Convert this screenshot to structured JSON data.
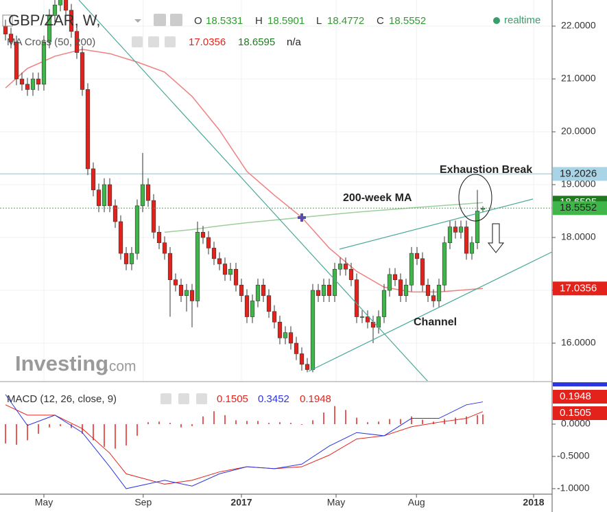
{
  "chart_data": {
    "type": "candlestick",
    "title": "GBP/ZAR, W,",
    "ohlc_labels": [
      "O",
      "H",
      "L",
      "C"
    ],
    "status": "realtime",
    "indicator": "MA Cross (50, 200)",
    "indicator_extra": "n/a",
    "up_color": "#3fb54a",
    "down_color": "#e3231b",
    "xlim": [
      -1,
      99.625
    ],
    "ylim": [
      15.286,
      22.494
    ],
    "xticks": [
      {
        "value": 7,
        "label": "May"
      },
      {
        "value": 25.1,
        "label": "Sep"
      },
      {
        "value": 43,
        "label": "2017"
      },
      {
        "value": 60.25,
        "label": "May"
      },
      {
        "value": 74.9,
        "label": "Aug"
      },
      {
        "value": 96.25,
        "label": "2018"
      }
    ],
    "yticks": [
      {
        "value": 16,
        "label": "16.0000"
      },
      {
        "value": 17,
        "label": "17.0000"
      },
      {
        "value": 18,
        "label": "18.0000"
      },
      {
        "value": 19,
        "label": "19.0000"
      },
      {
        "value": 20,
        "label": "20.0000"
      },
      {
        "value": 21,
        "label": "21.0000"
      },
      {
        "value": 22,
        "label": "22.0000"
      }
    ],
    "candles": [
      [
        22.0,
        22.12,
        21.73,
        21.85
      ],
      [
        21.85,
        21.97,
        21.58,
        21.7
      ],
      [
        21.7,
        21.82,
        20.88,
        21.0
      ],
      [
        21.0,
        21.12,
        20.78,
        20.9
      ],
      [
        20.9,
        21.02,
        20.68,
        20.8
      ],
      [
        20.8,
        21.12,
        20.68,
        21.0
      ],
      [
        21.0,
        21.12,
        20.78,
        20.9
      ],
      [
        20.9,
        21.82,
        20.78,
        21.7
      ],
      [
        21.7,
        22.32,
        21.58,
        22.2
      ],
      [
        22.2,
        22.52,
        22.08,
        22.4
      ],
      [
        22.4,
        22.62,
        22.28,
        22.5
      ],
      [
        22.5,
        22.62,
        22.18,
        22.3
      ],
      [
        22.3,
        22.42,
        21.78,
        21.9
      ],
      [
        21.9,
        22.02,
        21.38,
        21.5
      ],
      [
        21.5,
        21.62,
        20.68,
        20.8
      ],
      [
        20.8,
        20.92,
        19.18,
        19.3
      ],
      [
        19.3,
        19.42,
        18.78,
        18.9
      ],
      [
        18.9,
        19.02,
        18.48,
        18.6
      ],
      [
        18.6,
        19.12,
        18.48,
        19.0
      ],
      [
        19.0,
        19.12,
        18.48,
        18.6
      ],
      [
        18.6,
        18.72,
        18.18,
        18.3
      ],
      [
        18.3,
        18.42,
        17.58,
        17.7
      ],
      [
        17.7,
        17.82,
        17.38,
        17.5
      ],
      [
        17.5,
        17.82,
        17.38,
        17.7
      ],
      [
        17.7,
        18.72,
        17.58,
        18.6
      ],
      [
        18.6,
        19.6,
        18.48,
        19.0
      ],
      [
        19.0,
        19.12,
        18.58,
        18.7
      ],
      [
        18.7,
        18.82,
        17.98,
        18.1
      ],
      [
        18.1,
        18.22,
        17.78,
        17.9
      ],
      [
        17.9,
        18.02,
        17.58,
        17.7
      ],
      [
        17.7,
        17.82,
        16.5,
        17.2
      ],
      [
        17.2,
        17.32,
        16.98,
        17.1
      ],
      [
        17.1,
        17.22,
        16.78,
        16.9
      ],
      [
        16.9,
        17.12,
        16.6,
        17.0
      ],
      [
        17.0,
        17.12,
        16.3,
        16.8
      ],
      [
        16.8,
        18.3,
        16.68,
        18.1
      ],
      [
        18.1,
        18.22,
        17.88,
        18.0
      ],
      [
        18.0,
        18.12,
        17.68,
        17.8
      ],
      [
        17.8,
        17.92,
        17.48,
        17.6
      ],
      [
        17.6,
        17.72,
        17.38,
        17.5
      ],
      [
        17.5,
        17.62,
        17.18,
        17.3
      ],
      [
        17.3,
        17.52,
        17.18,
        17.4
      ],
      [
        17.4,
        17.52,
        16.98,
        17.1
      ],
      [
        17.1,
        17.22,
        16.78,
        16.9
      ],
      [
        16.9,
        17.02,
        16.38,
        16.5
      ],
      [
        16.5,
        16.92,
        16.38,
        16.8
      ],
      [
        16.8,
        17.22,
        16.68,
        17.1
      ],
      [
        17.1,
        17.22,
        16.78,
        16.9
      ],
      [
        16.9,
        17.02,
        16.48,
        16.6
      ],
      [
        16.6,
        16.72,
        16.28,
        16.4
      ],
      [
        16.4,
        16.52,
        15.98,
        16.1
      ],
      [
        16.1,
        16.32,
        15.98,
        16.2
      ],
      [
        16.2,
        16.32,
        15.88,
        16.0
      ],
      [
        16.0,
        16.12,
        15.68,
        15.8
      ],
      [
        15.8,
        15.92,
        15.48,
        15.6
      ],
      [
        15.6,
        15.72,
        15.45,
        15.5
      ],
      [
        15.5,
        17.12,
        15.45,
        17.0
      ],
      [
        17.0,
        17.12,
        16.78,
        16.9
      ],
      [
        16.9,
        17.22,
        16.78,
        17.1
      ],
      [
        17.1,
        17.22,
        16.78,
        16.9
      ],
      [
        16.9,
        17.52,
        16.78,
        17.4
      ],
      [
        17.4,
        17.62,
        17.28,
        17.5
      ],
      [
        17.5,
        17.62,
        17.28,
        17.4
      ],
      [
        17.4,
        17.52,
        17.08,
        17.2
      ],
      [
        17.2,
        17.32,
        16.38,
        16.5
      ],
      [
        16.5,
        16.62,
        16.38,
        16.5
      ],
      [
        16.5,
        16.62,
        16.28,
        16.4
      ],
      [
        16.4,
        16.52,
        16.0,
        16.3
      ],
      [
        16.3,
        16.62,
        16.18,
        16.5
      ],
      [
        16.5,
        17.12,
        16.38,
        17.0
      ],
      [
        17.0,
        17.42,
        16.88,
        17.3
      ],
      [
        17.3,
        17.42,
        17.08,
        17.2
      ],
      [
        17.2,
        17.32,
        16.78,
        16.9
      ],
      [
        16.9,
        17.22,
        16.78,
        17.1
      ],
      [
        17.1,
        17.82,
        16.98,
        17.7
      ],
      [
        17.7,
        17.82,
        17.48,
        17.6
      ],
      [
        17.6,
        17.72,
        16.98,
        17.1
      ],
      [
        17.1,
        17.22,
        16.78,
        16.9
      ],
      [
        16.9,
        17.02,
        16.68,
        16.8
      ],
      [
        16.8,
        17.22,
        16.68,
        17.1
      ],
      [
        17.1,
        18.02,
        16.98,
        17.9
      ],
      [
        17.9,
        18.32,
        17.78,
        18.2
      ],
      [
        18.2,
        18.32,
        17.98,
        18.1
      ],
      [
        18.1,
        18.32,
        17.98,
        18.2
      ],
      [
        18.2,
        18.32,
        17.58,
        17.7
      ],
      [
        17.7,
        18.02,
        17.58,
        17.9
      ],
      [
        17.9,
        18.9,
        17.78,
        18.5
      ],
      [
        18.5331,
        18.5901,
        18.4772,
        18.5552
      ]
    ],
    "series": [
      {
        "color": "#f08080",
        "x": [
          0,
          4,
          9,
          14,
          19,
          24,
          29,
          34,
          39,
          44,
          49,
          54,
          59,
          64,
          69,
          74,
          79,
          87
        ],
        "values": [
          20.83,
          21.2,
          21.43,
          21.56,
          21.48,
          21.32,
          21.13,
          20.67,
          20.03,
          19.25,
          18.8,
          18.38,
          17.8,
          17.36,
          17.06,
          16.97,
          16.97,
          17.0356
        ],
        "label_bg": "#e3231b"
      },
      {
        "color": "#9ccf9c",
        "x": [
          0,
          4,
          9,
          14,
          19,
          24,
          29,
          34,
          39,
          44,
          49,
          54,
          59,
          64,
          69,
          74,
          79,
          87
        ],
        "values": [
          null,
          null,
          null,
          null,
          null,
          null,
          18.1,
          18.15,
          18.22,
          18.28,
          18.33,
          18.38,
          18.43,
          18.48,
          18.52,
          18.56,
          18.6,
          18.6595
        ],
        "label_bg": "#1f7a1f"
      }
    ],
    "hline": {
      "value": 19.2026,
      "color": "#a8d4e6"
    },
    "annotations": [
      "Exhaustion Break",
      "200-week MA",
      "Channel"
    ],
    "watermark": [
      "Investing",
      ".com"
    ],
    "macd": {
      "title": "MACD (12, 26, close, 9)",
      "ylim": [
        -1.085,
        0.649
      ],
      "yticks": [
        {
          "value": -1,
          "label": "-1.0000"
        },
        {
          "value": -0.5,
          "label": "-0.5000"
        },
        {
          "value": 0,
          "label": "0.0000"
        }
      ],
      "histogram": {
        "color": "#e3231b",
        "x": [
          0,
          2,
          4,
          6,
          8,
          10,
          12,
          14,
          16,
          18,
          20,
          22,
          24,
          26,
          28,
          30,
          32,
          34,
          36,
          38,
          40,
          42,
          44,
          46,
          48,
          50,
          52,
          54,
          56,
          58,
          60,
          62,
          64,
          66,
          68,
          70,
          72,
          74,
          76,
          78,
          80,
          82,
          84,
          86,
          87
        ],
        "values": [
          -0.3,
          -0.32,
          -0.25,
          -0.15,
          -0.05,
          -0.03,
          -0.06,
          -0.15,
          -0.25,
          -0.35,
          -0.38,
          -0.33,
          -0.18,
          0.03,
          0.04,
          0.02,
          -0.05,
          -0.03,
          0.12,
          0.2,
          0.14,
          0.06,
          0.05,
          0.05,
          0.02,
          0.03,
          0.02,
          -0.01,
          0.06,
          0.18,
          0.28,
          0.22,
          0.1,
          0.03,
          0.04,
          0.08,
          0.08,
          0.12,
          0.07,
          0.04,
          0.08,
          0.1,
          0.12,
          0.14,
          0.1505
        ]
      },
      "macd": {
        "color": "#2b35e0",
        "x": [
          0,
          4,
          9,
          14,
          19,
          22,
          29,
          34,
          39,
          44,
          49,
          54,
          59,
          64,
          69,
          74,
          79,
          84,
          87
        ],
        "values": [
          0.46,
          -0.02,
          0.14,
          -0.13,
          -0.66,
          -1.0,
          -0.87,
          -0.96,
          -0.77,
          -0.66,
          -0.69,
          -0.62,
          -0.34,
          -0.13,
          -0.18,
          0.09,
          0.09,
          0.3,
          0.3452
        ]
      },
      "signal": {
        "color": "#e3231b",
        "x": [
          0,
          4,
          9,
          14,
          19,
          22,
          29,
          34,
          39,
          44,
          49,
          54,
          59,
          64,
          69,
          74,
          79,
          84,
          87
        ],
        "values": [
          0.3,
          0.14,
          0.14,
          -0.07,
          -0.45,
          -0.77,
          -0.93,
          -0.87,
          -0.74,
          -0.66,
          -0.69,
          -0.66,
          -0.48,
          -0.23,
          -0.18,
          -0.04,
          0.03,
          0.09,
          0.1948
        ]
      }
    }
  }
}
